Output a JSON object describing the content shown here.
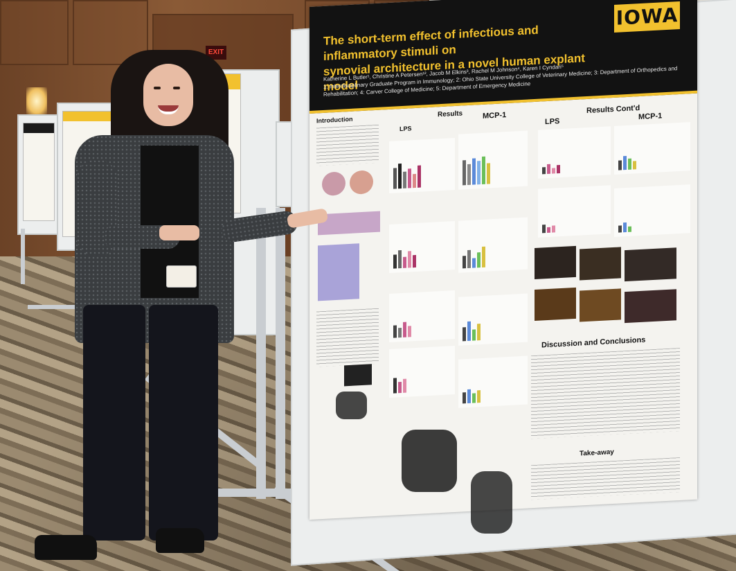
{
  "scene": {
    "exit_sign": "EXIT"
  },
  "poster": {
    "logo": "IOWA",
    "title_line1": "The short-term effect of infectious and inflammatory stimuli on",
    "title_line2": "synovial architecture in a novel human explant model",
    "authors_line1": "Katherine L Butler¹, Christine A Petersen¹², Jacob M Elkins³, Rachel M Johnson⁴, Karen I Cyndari⁵",
    "authors_line2": "1: Interdisciplinary Graduate Program in Immunology; 2: Ohio State University College of Veterinary Medicine; 3: Department of Orthopedics and",
    "authors_line3": "Rehabilitation; 4: Carver College of Medicine; 5: Department of Emergency Medicine",
    "section_intro": "Introduction",
    "section_results": "Results",
    "section_results_contd": "Results Cont'd",
    "label_lps_1": "LPS",
    "label_mcp_1": "MCP-1",
    "label_lps_2": "LPS",
    "label_mcp_2": "MCP-1",
    "section_discussion": "Discussion and Conclusions",
    "section_takeaway": "Take-away",
    "colors": {
      "header_bg": "#121212",
      "accent_gold": "#f2c12e"
    }
  }
}
